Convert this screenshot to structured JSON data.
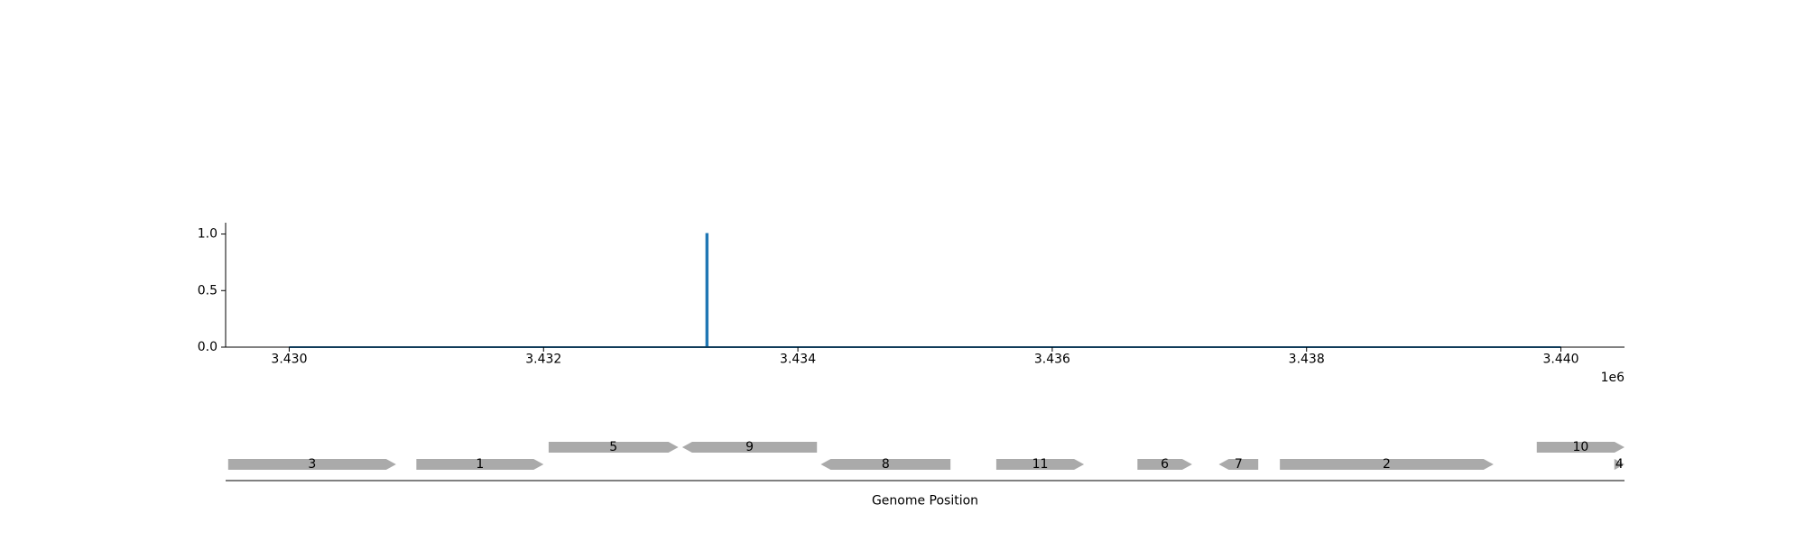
{
  "chart_data": [
    {
      "type": "line",
      "title": "",
      "xlabel": "",
      "ylabel": "",
      "x_offset_label": "1e6",
      "xlim": [
        3429500,
        3440500
      ],
      "ylim": [
        0.0,
        1.1
      ],
      "xticks": [
        3430000,
        3432000,
        3434000,
        3436000,
        3438000,
        3440000
      ],
      "xtick_labels": [
        "3.430",
        "3.432",
        "3.434",
        "3.436",
        "3.438",
        "3.440"
      ],
      "yticks": [
        0.0,
        0.5,
        1.0
      ],
      "ytick_labels": [
        "0.0",
        "0.5",
        "1.0"
      ],
      "grid": false,
      "series": [
        {
          "color": "#1f77b4",
          "x": [
            3430000,
            3433280,
            3433280,
            3433290,
            3433290,
            3440000
          ],
          "y": [
            0,
            0,
            1.0,
            1.0,
            0,
            0
          ]
        }
      ]
    },
    {
      "type": "gene_map",
      "xlabel": "Genome Position",
      "xlim": [
        3429500,
        3440500
      ],
      "gene_color": "#aaaaaa",
      "genes": [
        {
          "label": "3",
          "start": 3429520,
          "end": 3430840,
          "strand": 1,
          "row": 0
        },
        {
          "label": "1",
          "start": 3431000,
          "end": 3432000,
          "strand": 1,
          "row": 0
        },
        {
          "label": "5",
          "start": 3432040,
          "end": 3433060,
          "strand": 1,
          "row": 1
        },
        {
          "label": "9",
          "start": 3433090,
          "end": 3434150,
          "strand": -1,
          "row": 1
        },
        {
          "label": "8",
          "start": 3434180,
          "end": 3435200,
          "strand": -1,
          "row": 0
        },
        {
          "label": "11",
          "start": 3435560,
          "end": 3436250,
          "strand": 1,
          "row": 0
        },
        {
          "label": "6",
          "start": 3436670,
          "end": 3437100,
          "strand": 1,
          "row": 0
        },
        {
          "label": "7",
          "start": 3437310,
          "end": 3437620,
          "strand": -1,
          "row": 0
        },
        {
          "label": "2",
          "start": 3437790,
          "end": 3439470,
          "strand": 1,
          "row": 0
        },
        {
          "label": "10",
          "start": 3439810,
          "end": 3440500,
          "strand": 1,
          "row": 1
        },
        {
          "label": "4",
          "start": 3440420,
          "end": 3440560,
          "strand": 1,
          "row": 0
        }
      ]
    }
  ]
}
